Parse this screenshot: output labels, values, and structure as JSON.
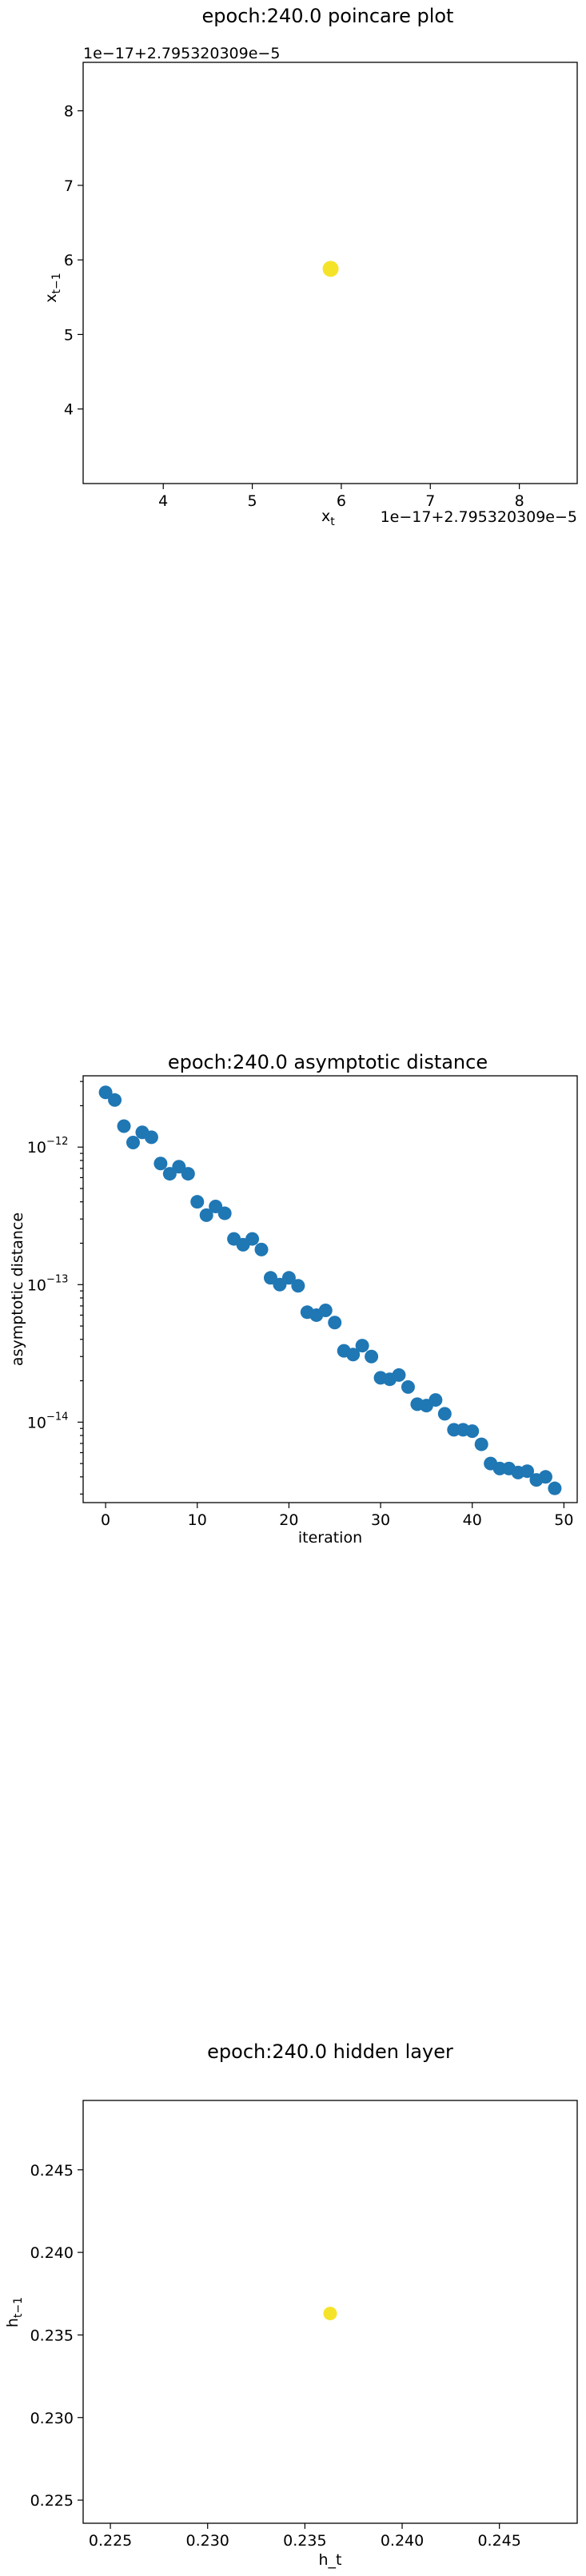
{
  "chart_data": [
    {
      "type": "scatter",
      "title": "epoch:240.0 poincare plot",
      "xlabel": "x_t",
      "ylabel": "x_{t-1}",
      "x_offset_label": "1e−17+2.795320309e−5",
      "y_offset_label": "1e−17+2.795320309e−5",
      "xlim": [
        3.1,
        8.65
      ],
      "ylim": [
        3.0,
        8.65
      ],
      "xticks": [
        4,
        5,
        6,
        7,
        8
      ],
      "yticks": [
        4,
        5,
        6,
        7,
        8
      ],
      "xtick_labels": [
        "4",
        "5",
        "6",
        "7",
        "8"
      ],
      "ytick_labels": [
        "4",
        "5",
        "6",
        "7",
        "8"
      ],
      "point_color": "#f5e32a",
      "points": [
        [
          5.88,
          5.88
        ]
      ]
    },
    {
      "type": "scatter",
      "title": "epoch:240.0 asymptotic distance",
      "xlabel": "iteration",
      "ylabel": "asymptotic distance",
      "yscale": "log",
      "xlim": [
        -2.45,
        51.45
      ],
      "ylim": [
        2.6e-15,
        3.3e-12
      ],
      "xticks": [
        0,
        10,
        20,
        30,
        40,
        50
      ],
      "xtick_labels": [
        "0",
        "10",
        "20",
        "30",
        "40",
        "50"
      ],
      "yticks": [
        1e-14,
        1e-13,
        1e-12
      ],
      "ytick_labels": [
        "10",
        "10",
        "10"
      ],
      "ytick_exponents": [
        "−14",
        "−13",
        "−12"
      ],
      "point_color": "#1f77b4",
      "x": [
        0,
        1,
        2,
        3,
        4,
        5,
        6,
        7,
        8,
        9,
        10,
        11,
        12,
        13,
        14,
        15,
        16,
        17,
        18,
        19,
        20,
        21,
        22,
        23,
        24,
        25,
        26,
        27,
        28,
        29,
        30,
        31,
        32,
        33,
        34,
        35,
        36,
        37,
        38,
        39,
        40,
        41,
        42,
        43,
        44,
        45,
        46,
        47,
        48,
        49
      ],
      "y": [
        2.5e-12,
        2.2e-12,
        1.42e-12,
        1.08e-12,
        1.28e-12,
        1.18e-12,
        7.6e-13,
        6.4e-13,
        7.2e-13,
        6.4e-13,
        4e-13,
        3.2e-13,
        3.7e-13,
        3.3e-13,
        2.15e-13,
        1.95e-13,
        2.15e-13,
        1.8e-13,
        1.12e-13,
        1e-13,
        1.12e-13,
        9.8e-14,
        6.3e-14,
        6e-14,
        6.5e-14,
        5.3e-14,
        3.3e-14,
        3.1e-14,
        3.6e-14,
        3e-14,
        2.1e-14,
        2.05e-14,
        2.2e-14,
        1.8e-14,
        1.35e-14,
        1.32e-14,
        1.45e-14,
        1.15e-14,
        8.8e-15,
        8.8e-15,
        8.6e-15,
        6.9e-15,
        5e-15,
        4.6e-15,
        4.6e-15,
        4.3e-15,
        4.4e-15,
        3.8e-15,
        4e-15,
        3.3e-15
      ]
    },
    {
      "type": "scatter",
      "title": "epoch:240.0 hidden layer",
      "xlabel": "h_t",
      "ylabel": "h_{t-1}",
      "xlim": [
        0.2236,
        0.249
      ],
      "ylim": [
        0.2236,
        0.2492
      ],
      "xticks": [
        0.225,
        0.23,
        0.235,
        0.24,
        0.245
      ],
      "yticks": [
        0.225,
        0.23,
        0.235,
        0.24,
        0.245
      ],
      "xtick_labels": [
        "0.225",
        "0.230",
        "0.235",
        "0.240",
        "0.245"
      ],
      "ytick_labels": [
        "0.225",
        "0.230",
        "0.235",
        "0.240",
        "0.245"
      ],
      "point_color": "#f5e32a",
      "points": [
        [
          0.2363,
          0.2363
        ]
      ]
    }
  ]
}
